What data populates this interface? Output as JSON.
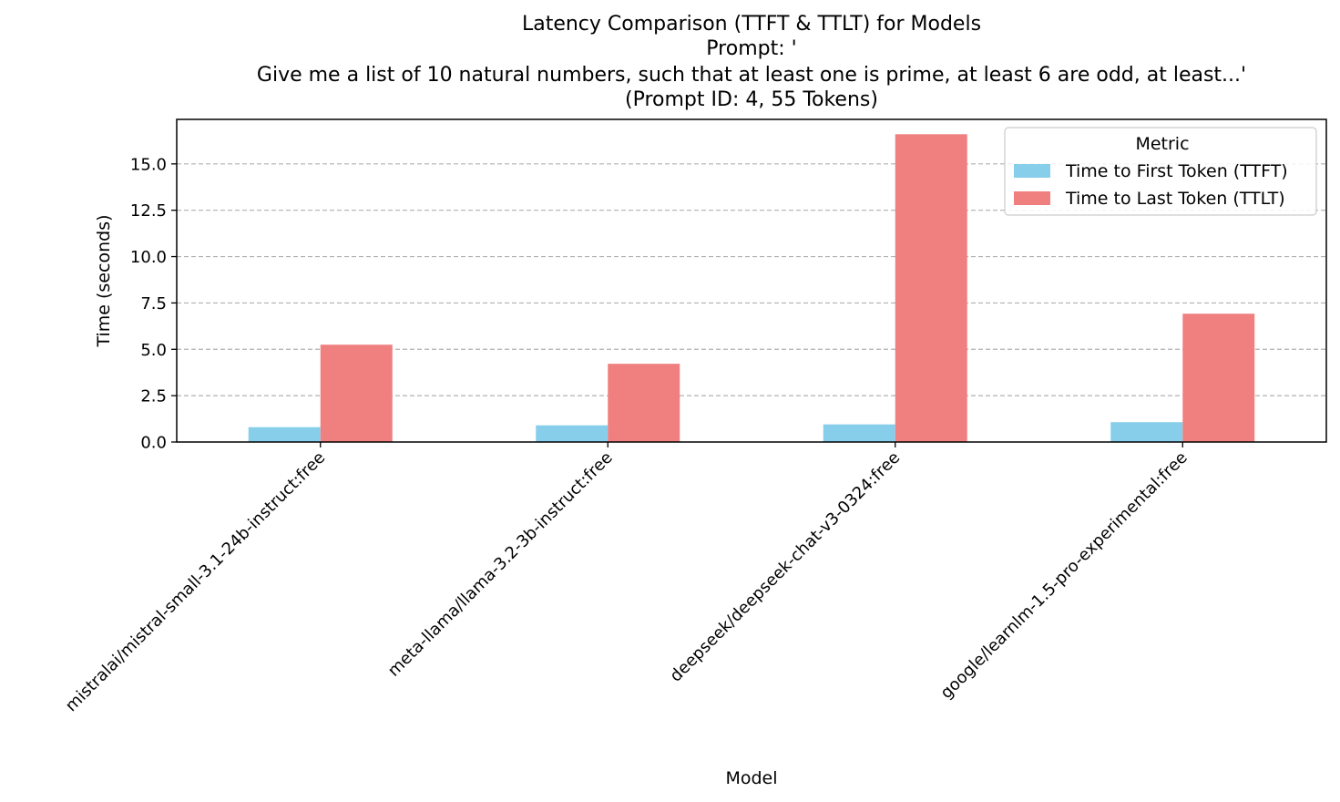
{
  "chart_data": {
    "type": "bar",
    "title_lines": [
      "Latency Comparison (TTFT & TTLT) for Models",
      "Prompt: '",
      "Give me a list of 10 natural numbers, such that at least one is prime, at least 6 are odd, at least...'",
      "(Prompt ID: 4, 55 Tokens)"
    ],
    "xlabel": "Model",
    "ylabel": "Time (seconds)",
    "ylim": [
      0,
      17.4
    ],
    "yticks": [
      "0.0",
      "2.5",
      "5.0",
      "7.5",
      "10.0",
      "12.5",
      "15.0"
    ],
    "grid": "y-dashed",
    "categories": [
      "mistralai/mistral-small-3.1-24b-instruct:free",
      "meta-llama/llama-3.2-3b-instruct:free",
      "deepseek/deepseek-chat-v3-0324:free",
      "google/learnlm-1.5-pro-experimental:free"
    ],
    "series": [
      {
        "name": "Time to First Token (TTFT)",
        "color": "#87ceeb",
        "values": [
          0.8,
          0.9,
          0.95,
          1.07
        ]
      },
      {
        "name": "Time to Last Token (TTLT)",
        "color": "#f08080",
        "values": [
          5.25,
          4.22,
          16.6,
          6.92
        ]
      }
    ],
    "legend": {
      "title": "Metric",
      "placement": "top-right"
    }
  }
}
